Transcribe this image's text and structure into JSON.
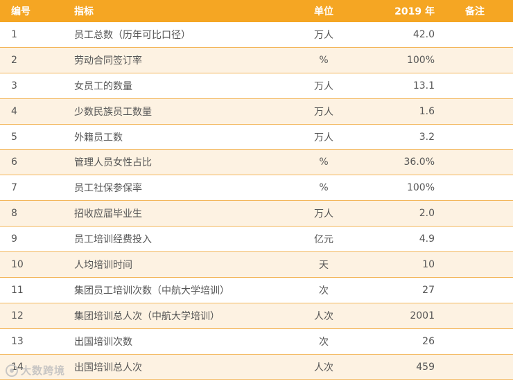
{
  "header": {
    "no": "编号",
    "name": "指标",
    "unit": "单位",
    "year": "2019 年",
    "note": "备注"
  },
  "rows": [
    {
      "no": "1",
      "name": "员工总数（历年可比口径）",
      "unit": "万人",
      "value": "42.0"
    },
    {
      "no": "2",
      "name": "劳动合同签订率",
      "unit": "%",
      "value": "100%"
    },
    {
      "no": "3",
      "name": "女员工的数量",
      "unit": "万人",
      "value": "13.1"
    },
    {
      "no": "4",
      "name": "少数民族员工数量",
      "unit": "万人",
      "value": "1.6"
    },
    {
      "no": "5",
      "name": "外籍员工数",
      "unit": "万人",
      "value": "3.2"
    },
    {
      "no": "6",
      "name": "管理人员女性占比",
      "unit": "%",
      "value": "36.0%"
    },
    {
      "no": "7",
      "name": "员工社保参保率",
      "unit": "%",
      "value": "100%"
    },
    {
      "no": "8",
      "name": "招收应届毕业生",
      "unit": "万人",
      "value": "2.0"
    },
    {
      "no": "9",
      "name": "员工培训经费投入",
      "unit": "亿元",
      "value": "4.9"
    },
    {
      "no": "10",
      "name": "人均培训时间",
      "unit": "天",
      "value": "10"
    },
    {
      "no": "11",
      "name": "集团员工培训次数（中航大学培训）",
      "unit": "次",
      "value": "27"
    },
    {
      "no": "12",
      "name": "集团培训总人次（中航大学培训）",
      "unit": "人次",
      "value": "2001"
    },
    {
      "no": "13",
      "name": "出国培训次数",
      "unit": "次",
      "value": "26"
    },
    {
      "no": "14",
      "name": "出国培训总人次",
      "unit": "人次",
      "value": "459"
    }
  ],
  "watermark": "大数跨境",
  "colors": {
    "header_bg": "#f5a623",
    "alt_row_bg": "#fdf2e2",
    "row_border": "#f3b65a"
  }
}
